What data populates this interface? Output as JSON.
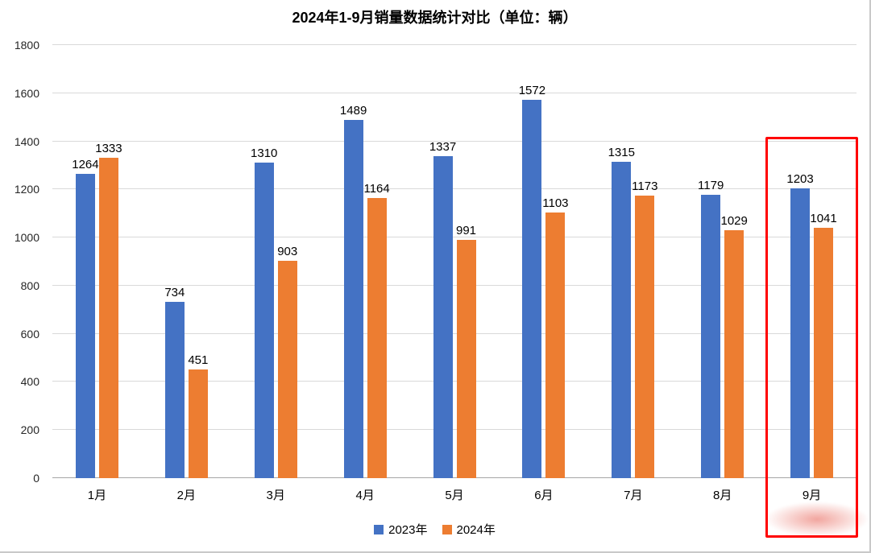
{
  "chart_data": {
    "type": "bar",
    "title": "2024年1-9月销量数据统计对比（单位：辆）",
    "categories": [
      "1月",
      "2月",
      "3月",
      "4月",
      "5月",
      "6月",
      "7月",
      "8月",
      "9月"
    ],
    "series": [
      {
        "name": "2023年",
        "color": "#4472C4",
        "values": [
          1264,
          734,
          1310,
          1489,
          1337,
          1572,
          1315,
          1179,
          1203
        ]
      },
      {
        "name": "2024年",
        "color": "#ED7D31",
        "values": [
          1333,
          451,
          903,
          1164,
          991,
          1103,
          1173,
          1029,
          1041
        ]
      }
    ],
    "xlabel": "",
    "ylabel": "",
    "ylim": [
      0,
      1800
    ],
    "ytick_step": 200,
    "grid": true,
    "legend_position": "bottom",
    "highlight": {
      "category": "9月",
      "color": "#FF0000"
    }
  }
}
